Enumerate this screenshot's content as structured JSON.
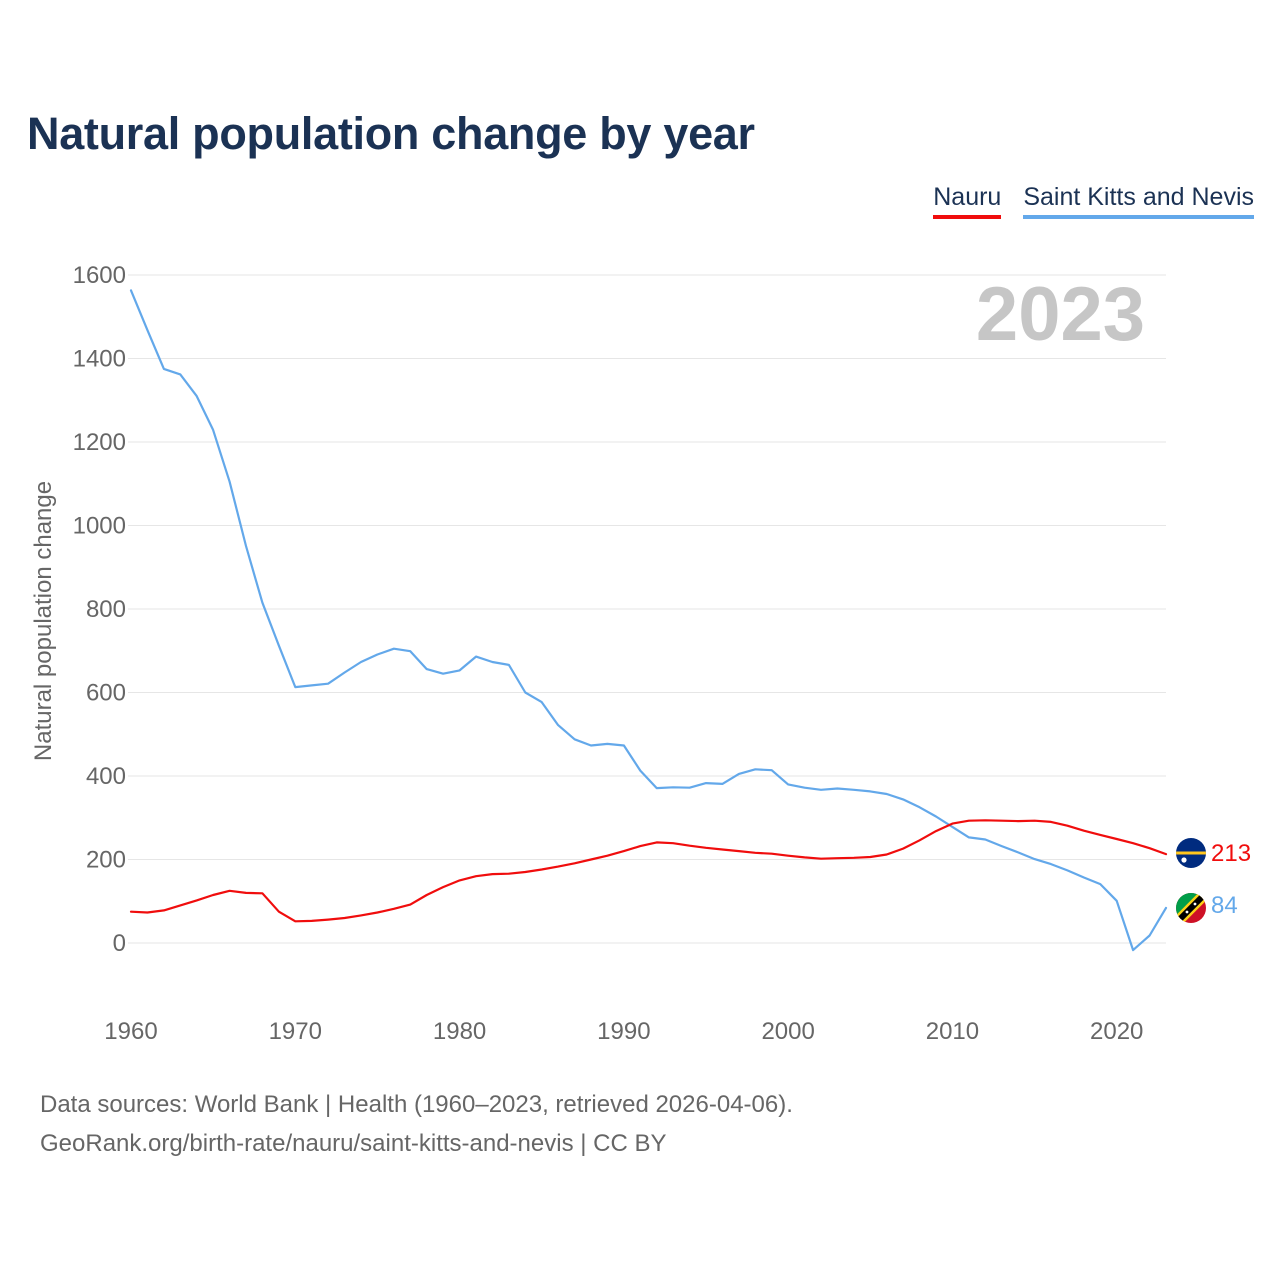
{
  "header": {
    "title": "Natural population change by year"
  },
  "legend": {
    "items": [
      "Nauru",
      "Saint Kitts and Nevis"
    ]
  },
  "colors": {
    "nauru": "#f00d0d",
    "skn": "#63a8ea",
    "grid": "#e6e6e6",
    "year_label": "#c6c6c6",
    "axis_text": "#666666"
  },
  "chart_data": {
    "type": "line",
    "title": "Natural population change by year",
    "xlabel": "",
    "ylabel": "Natural population change",
    "xlim": [
      1960,
      2023
    ],
    "ylim": [
      -100,
      1650
    ],
    "yticks": [
      0,
      200,
      400,
      600,
      800,
      1000,
      1200,
      1400,
      1600
    ],
    "xticks": [
      1960,
      1970,
      1980,
      1990,
      2000,
      2010,
      2020
    ],
    "current_year": "2023",
    "x": [
      1960,
      1961,
      1962,
      1963,
      1964,
      1965,
      1966,
      1967,
      1968,
      1969,
      1970,
      1971,
      1972,
      1973,
      1974,
      1975,
      1976,
      1977,
      1978,
      1979,
      1980,
      1981,
      1982,
      1983,
      1984,
      1985,
      1986,
      1987,
      1988,
      1989,
      1990,
      1991,
      1992,
      1993,
      1994,
      1995,
      1996,
      1997,
      1998,
      1999,
      2000,
      2001,
      2002,
      2003,
      2004,
      2005,
      2006,
      2007,
      2008,
      2009,
      2010,
      2011,
      2012,
      2013,
      2014,
      2015,
      2016,
      2017,
      2018,
      2019,
      2020,
      2021,
      2022,
      2023
    ],
    "series": [
      {
        "name": "Nauru",
        "end_label": "213",
        "values": [
          75,
          73,
          78,
          90,
          102,
          115,
          125,
          120,
          119,
          75,
          52,
          53,
          56,
          60,
          66,
          73,
          82,
          92,
          115,
          134,
          150,
          160,
          165,
          166,
          170,
          176,
          183,
          191,
          200,
          209,
          220,
          232,
          241,
          239,
          233,
          228,
          224,
          220,
          216,
          214,
          209,
          205,
          202,
          203,
          204,
          206,
          212,
          226,
          246,
          268,
          286,
          293,
          294,
          293,
          292,
          293,
          290,
          281,
          269,
          259,
          249,
          239,
          227,
          213
        ]
      },
      {
        "name": "Saint Kitts and Nevis",
        "end_label": "84",
        "values": [
          1563,
          1468,
          1375,
          1362,
          1310,
          1229,
          1105,
          951,
          815,
          712,
          613,
          617,
          621,
          648,
          673,
          691,
          705,
          699,
          656,
          645,
          653,
          686,
          673,
          666,
          600,
          577,
          522,
          488,
          473,
          477,
          473,
          413,
          371,
          373,
          372,
          383,
          381,
          405,
          416,
          414,
          380,
          372,
          367,
          370,
          367,
          363,
          357,
          344,
          325,
          303,
          278,
          253,
          248,
          232,
          217,
          201,
          189,
          174,
          157,
          141,
          101,
          -17,
          18,
          84
        ]
      }
    ]
  },
  "footer": {
    "line1": "Data sources: World Bank | Health (1960–2023, retrieved 2026-04-06).",
    "line2": "GeoRank.org/birth-rate/nauru/saint-kitts-and-nevis | CC BY"
  }
}
